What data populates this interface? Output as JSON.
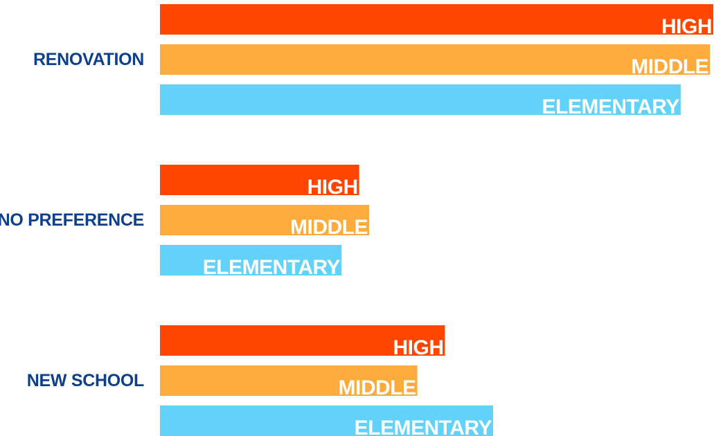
{
  "chart_data": {
    "type": "bar",
    "orientation": "horizontal",
    "title": "",
    "xlabel": "",
    "ylabel": "",
    "grid": false,
    "legend": "none",
    "xlim": [
      0,
      100
    ],
    "categories": [
      "RENOVATION",
      "NO PREFERENCE",
      "NEW SCHOOL"
    ],
    "series": [
      {
        "name": "HIGH",
        "color": "#ff4500",
        "values": [
          100,
          36,
          51.5
        ]
      },
      {
        "name": "MIDDLE",
        "color": "#fcab3c",
        "values": [
          99.4,
          37.8,
          46.5
        ]
      },
      {
        "name": "ELEMENTARY",
        "color": "#62d2fb",
        "values": [
          94.1,
          32.8,
          60.2
        ]
      }
    ]
  }
}
